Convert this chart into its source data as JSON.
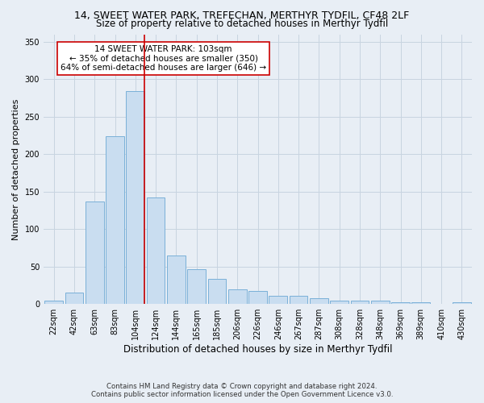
{
  "title": "14, SWEET WATER PARK, TREFECHAN, MERTHYR TYDFIL, CF48 2LF",
  "subtitle": "Size of property relative to detached houses in Merthyr Tydfil",
  "xlabel": "Distribution of detached houses by size in Merthyr Tydfil",
  "ylabel": "Number of detached properties",
  "footer_line1": "Contains HM Land Registry data © Crown copyright and database right 2024.",
  "footer_line2": "Contains public sector information licensed under the Open Government Licence v3.0.",
  "categories": [
    "22sqm",
    "42sqm",
    "63sqm",
    "83sqm",
    "104sqm",
    "124sqm",
    "144sqm",
    "165sqm",
    "185sqm",
    "206sqm",
    "226sqm",
    "246sqm",
    "267sqm",
    "287sqm",
    "308sqm",
    "328sqm",
    "348sqm",
    "369sqm",
    "389sqm",
    "410sqm",
    "430sqm"
  ],
  "values": [
    5,
    15,
    137,
    224,
    284,
    142,
    65,
    47,
    34,
    20,
    17,
    11,
    11,
    8,
    5,
    4,
    4,
    2,
    2,
    0,
    2
  ],
  "bar_color": "#c9ddf0",
  "bar_edge_color": "#7ab0d8",
  "grid_color": "#c8d4e0",
  "background_color": "#e8eef5",
  "vline_color": "#cc0000",
  "vline_x_index": 4,
  "annotation_text": "14 SWEET WATER PARK: 103sqm\n← 35% of detached houses are smaller (350)\n64% of semi-detached houses are larger (646) →",
  "annotation_box_color": "white",
  "annotation_box_edge": "#cc0000",
  "ylim": [
    0,
    360
  ],
  "yticks": [
    0,
    50,
    100,
    150,
    200,
    250,
    300,
    350
  ],
  "title_fontsize": 9,
  "subtitle_fontsize": 8.5,
  "ylabel_fontsize": 8,
  "xlabel_fontsize": 8.5,
  "annot_fontsize": 7.5,
  "tick_fontsize": 7
}
